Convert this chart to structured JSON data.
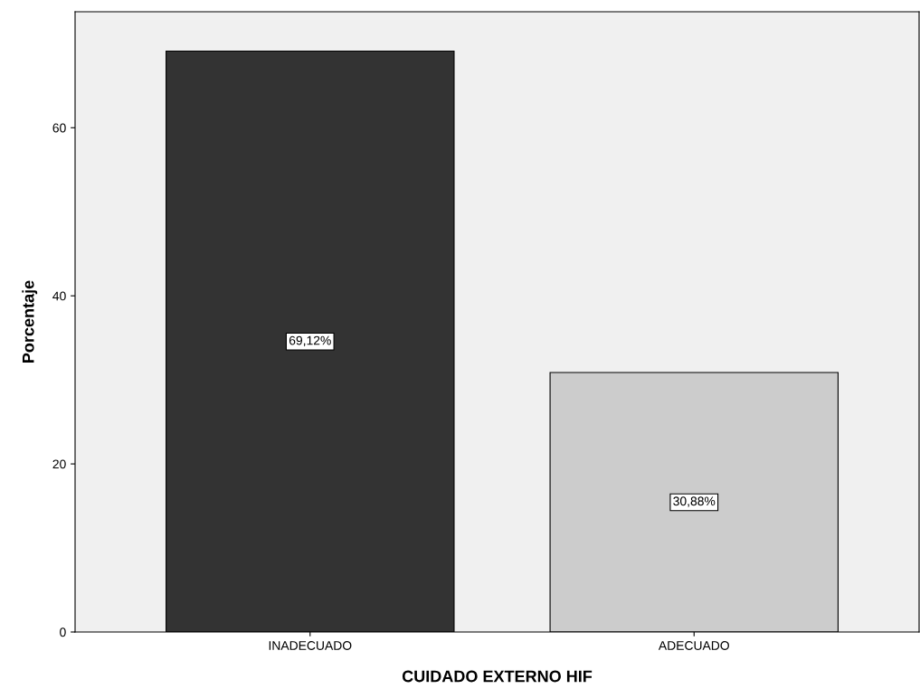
{
  "chart_data": {
    "type": "bar",
    "xlabel": "CUIDADO EXTERNO HIF",
    "ylabel": "Porcentaje",
    "categories": [
      "INADECUADO",
      "ADECUADO"
    ],
    "values": [
      69.12,
      30.88
    ],
    "colors": [
      "#333333",
      "#cccccc"
    ],
    "value_labels": [
      "69,12%",
      "30,88%"
    ],
    "ylim": [
      0,
      73.8
    ],
    "yticks": [
      0,
      20,
      40,
      60
    ],
    "grid": false,
    "legend": false
  }
}
